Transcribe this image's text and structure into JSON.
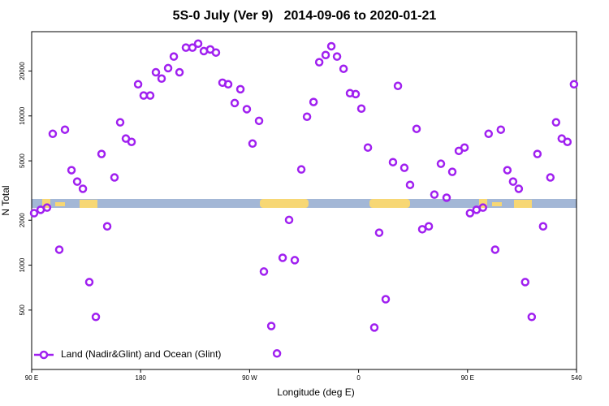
{
  "chart_data": {
    "type": "scatter",
    "title": "5S-0 July (Ver 9)   2014-09-06 to 2020-01-21",
    "xlabel": "Longitude (deg E)",
    "ylabel": "N Total",
    "x": [
      92,
      97.4,
      102.7,
      107.4,
      112.8,
      117.5,
      122.9,
      127.6,
      132.3,
      137.6,
      143,
      147.7,
      152.4,
      158.4,
      163.1,
      167.8,
      172.5,
      177.9,
      182.5,
      187.9,
      192.6,
      197.3,
      202.7,
      207.4,
      212.1,
      217.4,
      222.8,
      227.5,
      232.2,
      237.5,
      242.2,
      247.6,
      252.3,
      257.7,
      262.4,
      267.7,
      272.4,
      277.8,
      281.8,
      287.9,
      292.6,
      297.3,
      302.6,
      307.3,
      312.7,
      317.4,
      322.8,
      327.5,
      332.8,
      337.5,
      342.2,
      347.6,
      352.9,
      357.6,
      362.3,
      367.7,
      373,
      377,
      382.4,
      388.4,
      392.5,
      397.8,
      402.5,
      407.9,
      412.6,
      418,
      422.6,
      428,
      432.7,
      437.4,
      442.8,
      447.5,
      452,
      457.4,
      462.7,
      467.4,
      472.8,
      477.5,
      482.9,
      487.6,
      492.3,
      497.6,
      503,
      507.7,
      512.4,
      518.4,
      523.1,
      527.8,
      532.5,
      537.9
    ],
    "series": [
      {
        "name": "Land (Nadir&Glint) and Ocean (Glint)",
        "color": "#a020f0",
        "values": [
          2230,
          2350,
          2430,
          7590,
          1270,
          8090,
          4330,
          3630,
          3250,
          770,
          450,
          5560,
          1820,
          3870,
          9060,
          7050,
          6700,
          16300,
          13700,
          13700,
          19600,
          17800,
          20900,
          25000,
          19600,
          28700,
          28700,
          30500,
          27200,
          27900,
          26600,
          16700,
          16300,
          12200,
          15100,
          11100,
          6530,
          9270,
          906,
          391,
          256,
          1120,
          2010,
          1080,
          4380,
          9880,
          12400,
          22900,
          25600,
          29300,
          25000,
          20700,
          14200,
          14000,
          11200,
          6140,
          382,
          1650,
          591,
          4900,
          15900,
          4490,
          3450,
          8190,
          1740,
          1820,
          2970,
          4780,
          2830,
          4220,
          5830,
          6140,
          2230,
          2350,
          2430,
          7590,
          1270,
          8090,
          4330,
          3630,
          3250,
          770,
          450,
          5560,
          1820,
          3870,
          9060,
          7050,
          6700,
          16300
        ]
      }
    ],
    "xlim": [
      90,
      540
    ],
    "xticks": [
      {
        "value": 90,
        "label": "90 E"
      },
      180,
      {
        "value": 270,
        "label": "90 W"
      },
      {
        "value": 360,
        "label": "0"
      },
      {
        "value": 450,
        "label": "90 E"
      },
      540
    ],
    "ylim": [
      200,
      36700
    ],
    "yticks": [
      500,
      1000,
      2000,
      5000,
      10000,
      20000
    ],
    "log_y": true,
    "legend": "bottomleft"
  }
}
